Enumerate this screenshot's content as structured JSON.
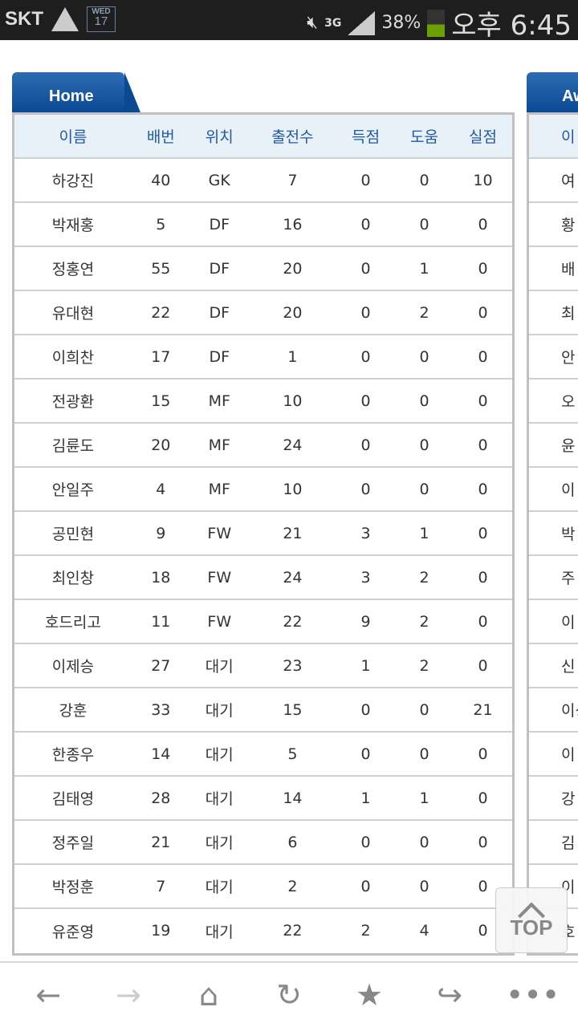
{
  "status_bar": {
    "carrier": "SKT",
    "calendar_day": "WED",
    "calendar_date": "17",
    "network": "3G",
    "battery": "38%",
    "battery_level": 0.38,
    "time": "오후 6:45"
  },
  "home": {
    "tab_label": "Home",
    "headers": [
      "이름",
      "배번",
      "위치",
      "출전수",
      "득점",
      "도움",
      "실점"
    ],
    "rows": [
      [
        "하강진",
        "40",
        "GK",
        "7",
        "0",
        "0",
        "10"
      ],
      [
        "박재홍",
        "5",
        "DF",
        "16",
        "0",
        "0",
        "0"
      ],
      [
        "정홍연",
        "55",
        "DF",
        "20",
        "0",
        "1",
        "0"
      ],
      [
        "유대현",
        "22",
        "DF",
        "20",
        "0",
        "2",
        "0"
      ],
      [
        "이희찬",
        "17",
        "DF",
        "1",
        "0",
        "0",
        "0"
      ],
      [
        "전광환",
        "15",
        "MF",
        "10",
        "0",
        "0",
        "0"
      ],
      [
        "김륜도",
        "20",
        "MF",
        "24",
        "0",
        "0",
        "0"
      ],
      [
        "안일주",
        "4",
        "MF",
        "10",
        "0",
        "0",
        "0"
      ],
      [
        "공민현",
        "9",
        "FW",
        "21",
        "3",
        "1",
        "0"
      ],
      [
        "최인창",
        "18",
        "FW",
        "24",
        "3",
        "2",
        "0"
      ],
      [
        "호드리고",
        "11",
        "FW",
        "22",
        "9",
        "2",
        "0"
      ],
      [
        "이제승",
        "27",
        "대기",
        "23",
        "1",
        "2",
        "0"
      ],
      [
        "강훈",
        "33",
        "대기",
        "15",
        "0",
        "0",
        "21"
      ],
      [
        "한종우",
        "14",
        "대기",
        "5",
        "0",
        "0",
        "0"
      ],
      [
        "김태영",
        "28",
        "대기",
        "14",
        "1",
        "1",
        "0"
      ],
      [
        "정주일",
        "21",
        "대기",
        "6",
        "0",
        "0",
        "0"
      ],
      [
        "박정훈",
        "7",
        "대기",
        "2",
        "0",
        "0",
        "0"
      ],
      [
        "유준영",
        "19",
        "대기",
        "22",
        "2",
        "4",
        "0"
      ]
    ]
  },
  "away": {
    "tab_label": "Aw",
    "header": "이",
    "names": [
      "여",
      "황",
      "배",
      "최",
      "안",
      "오",
      "윤",
      "이",
      "박",
      "주",
      "이",
      "신",
      "이상",
      "이",
      "강",
      "김",
      "이",
      "호"
    ]
  },
  "top_button": "TOP",
  "nav": {
    "back": "←",
    "forward": "→",
    "home": "⌂",
    "reload": "↻",
    "bookmark": "★",
    "share": "↪",
    "more": "•••"
  }
}
